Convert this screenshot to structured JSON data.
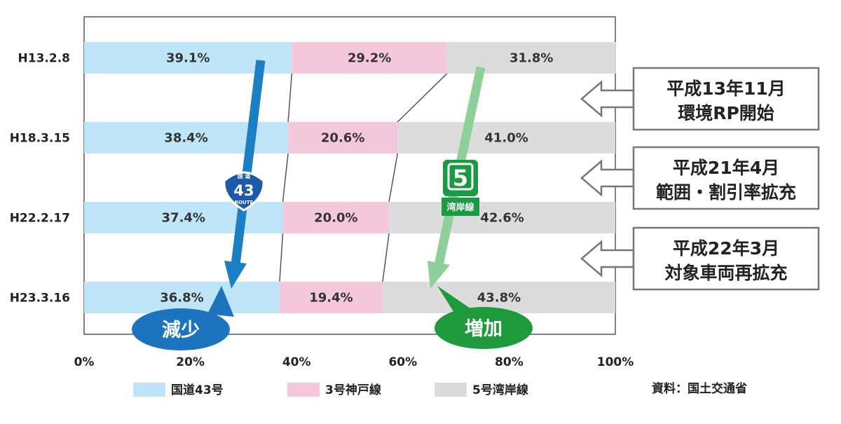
{
  "chart_data": {
    "type": "bar",
    "orientation": "horizontal",
    "stacked": true,
    "categories": [
      "H13.2.8",
      "H18.3.15",
      "H22.2.17",
      "H23.3.16"
    ],
    "series": [
      {
        "name": "国道43号",
        "values": [
          39.1,
          38.4,
          37.4,
          36.8
        ],
        "labels": [
          "39.1%",
          "38.4%",
          "37.4%",
          "36.8%"
        ],
        "color": "#bfe6f8"
      },
      {
        "name": "3号神戸線",
        "values": [
          29.2,
          20.6,
          20.0,
          19.4
        ],
        "labels": [
          "29.2%",
          "20.6%",
          "20.0%",
          "19.4%"
        ],
        "color": "#f4c7dc"
      },
      {
        "name": "5号湾岸線",
        "values": [
          31.8,
          41.0,
          42.6,
          43.8
        ],
        "labels": [
          "31.8%",
          "41.0%",
          "42.6%",
          "43.8%"
        ],
        "color": "#dcdcdc"
      }
    ],
    "xlim": [
      0,
      100
    ],
    "x_ticks": [
      "0%",
      "20%",
      "40%",
      "60%",
      "80%",
      "100%"
    ],
    "legend_position": "bottom",
    "annotations": [
      {
        "lines": [
          "平成13年11月",
          "環境RP開始"
        ]
      },
      {
        "lines": [
          "平成21年4月",
          "範囲・割引率拡充"
        ]
      },
      {
        "lines": [
          "平成22年3月",
          "対象車両再拡充"
        ]
      }
    ],
    "callouts": {
      "decrease": "減少",
      "increase": "増加"
    },
    "route_signs": {
      "national": {
        "top": "国 道",
        "number": "43",
        "bottom": "ROUTE"
      },
      "expressway": {
        "number": "5",
        "name": "湾岸線"
      }
    },
    "source": "資料：国土交通省"
  },
  "colors": {
    "arrow_decrease": "#1b7fc4",
    "arrow_increase": "#8ecf9a",
    "bubble_decrease": "#1b74bd",
    "bubble_increase": "#1e9a3c",
    "route_national": "#1e5aa8",
    "route_expressway": "#1a9a42"
  }
}
